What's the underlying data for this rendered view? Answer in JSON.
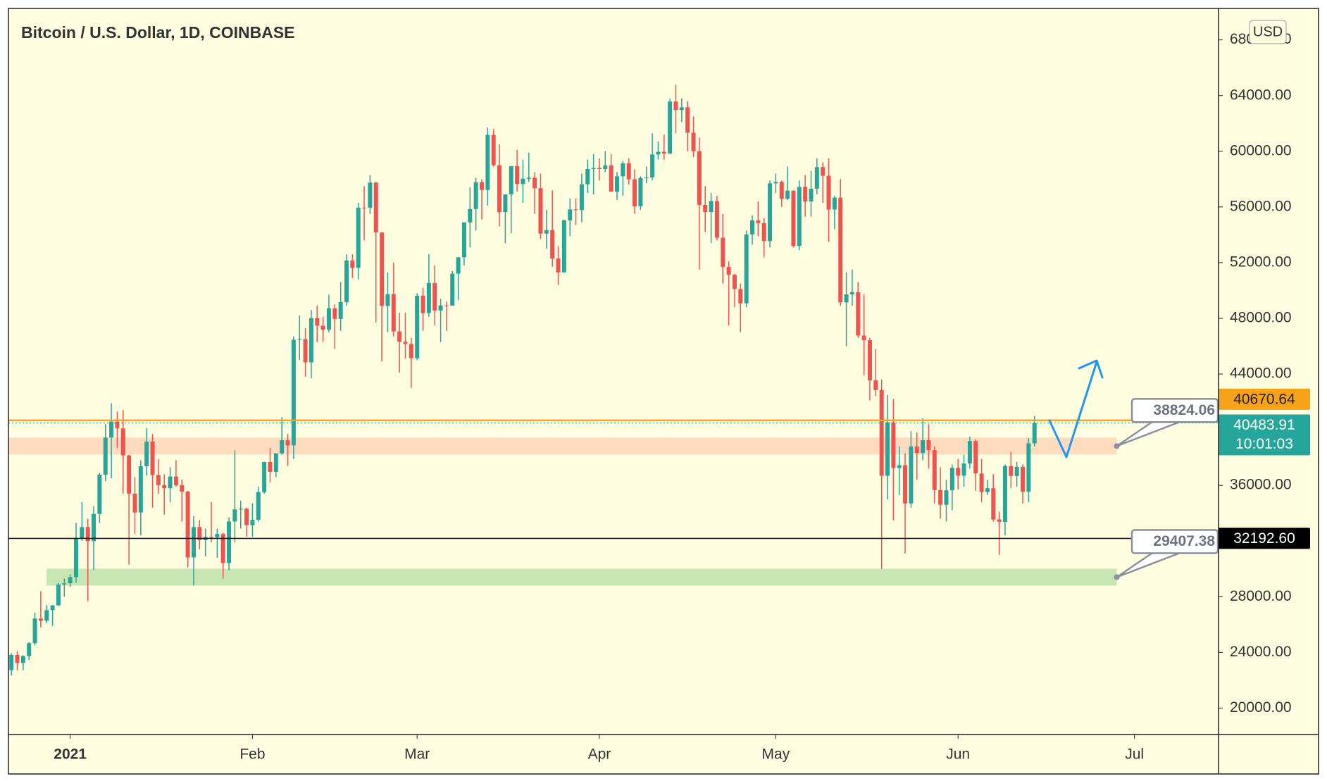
{
  "chart_data": {
    "type": "candlestick",
    "title": "Bitcoin / U.S. Dollar, 1D, COINBASE",
    "currency_button": "USD",
    "up_color": "#26a69a",
    "down_color": "#ef5350",
    "open": [
      22720,
      23824,
      23241,
      23736,
      24665,
      26437,
      26272,
      27038,
      27377,
      28876,
      28967,
      29412,
      32195,
      33001,
      31989,
      33949,
      36769,
      39432,
      40582,
      40088,
      38150,
      35404,
      34051,
      37371,
      39145,
      36742,
      36013,
      35799,
      36632,
      36013,
      35547,
      30826,
      33005,
      32067,
      32289,
      32261,
      32509,
      30425,
      33404,
      34275,
      34318,
      33137,
      33522,
      35510,
      37677,
      36975,
      38302,
      39240,
      38875,
      46453,
      46508,
      44838,
      48013,
      47470,
      47186,
      48720,
      47958,
      49168,
      52155,
      51622,
      55951,
      55950,
      57750,
      54161,
      48891,
      49727,
      47057,
      46320,
      46156,
      45135,
      49618,
      48377,
      50539,
      48562,
      48928,
      48912,
      51207,
      52386,
      54887,
      55851,
      57774,
      57221,
      61180,
      59001,
      55630,
      56900,
      58925,
      57645,
      58031,
      58102,
      57351,
      54083,
      54341,
      52297,
      51301,
      55032,
      55820,
      55777,
      57628,
      58730,
      58800,
      58726,
      58981,
      57095,
      58202,
      59130,
      57992,
      56048,
      58080,
      58125,
      59774,
      59964,
      59835,
      63576,
      62959,
      63159,
      61335,
      60006,
      56150,
      55633,
      56427,
      53787,
      51690,
      51125,
      50110,
      49075,
      54030,
      55036,
      54838,
      53555,
      57694,
      57800,
      56578,
      57169,
      53200,
      57441,
      56393,
      57314,
      58862,
      58240,
      55816,
      56670,
      49150,
      49716,
      49880,
      46760,
      46431,
      43538,
      42849,
      36690,
      40526,
      37252,
      37449,
      34700,
      38796,
      38325,
      39241,
      38529,
      35663,
      34605,
      35641,
      37254,
      36694,
      37568,
      39187,
      36851,
      35520,
      35796,
      33552,
      33380,
      37388,
      36675,
      37331,
      35546,
      39020
    ],
    "high": [
      23950,
      24100,
      23800,
      24750,
      26850,
      28400,
      27400,
      27400,
      28990,
      29300,
      29600,
      33300,
      34800,
      33600,
      34500,
      36900,
      40400,
      41900,
      41300,
      41400,
      38200,
      36600,
      37800,
      40100,
      39700,
      37900,
      36800,
      37300,
      37800,
      36400,
      35600,
      33800,
      33500,
      32900,
      34800,
      32900,
      32600,
      33700,
      38500,
      34900,
      34400,
      34700,
      35900,
      37700,
      38700,
      38300,
      40900,
      39700,
      46700,
      48200,
      47300,
      48600,
      48900,
      48100,
      49700,
      49000,
      50600,
      52600,
      52600,
      56300,
      57500,
      58300,
      57800,
      54200,
      51300,
      52000,
      48400,
      48400,
      46600,
      49800,
      50200,
      52600,
      51800,
      49400,
      49200,
      51400,
      52400,
      54900,
      57400,
      58100,
      58000,
      61700,
      61600,
      60500,
      56900,
      58900,
      60100,
      59400,
      59900,
      58500,
      58400,
      55800,
      57200,
      53200,
      55100,
      56600,
      56600,
      58400,
      59400,
      59800,
      59500,
      60000,
      59800,
      58500,
      59300,
      59500,
      58700,
      58200,
      58900,
      61300,
      60700,
      61200,
      63800,
      64800,
      63800,
      63600,
      62500,
      61000,
      57500,
      57000,
      56800,
      55500,
      52100,
      51200,
      50500,
      54300,
      55400,
      56400,
      55200,
      57900,
      58400,
      57900,
      58900,
      57200,
      57900,
      58300,
      58600,
      59500,
      59200,
      59500,
      56800,
      58000,
      51300,
      51500,
      50600,
      49700,
      46600,
      45800,
      43600,
      42500,
      42200,
      38800,
      38300,
      39900,
      39800,
      40800,
      40400,
      38800,
      37300,
      36400,
      37500,
      37900,
      38200,
      39500,
      39300,
      37900,
      36400,
      36800,
      34100,
      37500,
      38400,
      37700,
      37500,
      39400,
      40980
    ],
    "low": [
      22350,
      22700,
      22700,
      23450,
      24500,
      25800,
      26100,
      25900,
      27350,
      28000,
      28700,
      29000,
      32000,
      27700,
      29900,
      33300,
      36300,
      36500,
      38700,
      35400,
      30300,
      32500,
      32400,
      36700,
      34400,
      35400,
      33900,
      34800,
      35900,
      33400,
      30100,
      28800,
      31400,
      30900,
      31900,
      30800,
      29300,
      29900,
      31900,
      32900,
      32300,
      32300,
      33400,
      35400,
      36200,
      36600,
      38200,
      37400,
      37900,
      45000,
      43800,
      43700,
      46300,
      46300,
      47000,
      45800,
      47100,
      48900,
      50900,
      50800,
      53600,
      55500,
      47700,
      44900,
      47000,
      46700,
      44100,
      45100,
      43000,
      45000,
      47100,
      48100,
      47500,
      46300,
      47100,
      48900,
      49300,
      51800,
      53100,
      54300,
      55100,
      56100,
      58900,
      54600,
      53400,
      54100,
      57100,
      56300,
      57800,
      55500,
      53700,
      53000,
      51700,
      50400,
      51300,
      53900,
      54700,
      54900,
      57000,
      56900,
      57900,
      58500,
      57100,
      56500,
      56800,
      57600,
      55500,
      55800,
      57700,
      57900,
      59400,
      59400,
      59800,
      61300,
      62100,
      60000,
      59600,
      51500,
      54200,
      53400,
      53600,
      50500,
      47500,
      48800,
      47000,
      48800,
      53300,
      53900,
      52400,
      53100,
      57000,
      56000,
      56500,
      53100,
      52900,
      55300,
      55300,
      56900,
      56300,
      53500,
      54400,
      48900,
      46000,
      48900,
      46600,
      43900,
      42100,
      42400,
      30000,
      35000,
      33500,
      35300,
      31100,
      34400,
      36400,
      37800,
      37200,
      34700,
      33600,
      33400,
      34200,
      35700,
      35900,
      37200,
      35600,
      34800,
      35300,
      33400,
      31000,
      32400,
      35800,
      35900,
      34700,
      34800,
      38800
    ],
    "close": [
      23824,
      23241,
      23736,
      24665,
      26437,
      26272,
      27038,
      27377,
      28876,
      28967,
      29412,
      32195,
      33001,
      31989,
      33949,
      36769,
      39432,
      40582,
      40088,
      38150,
      35404,
      34051,
      37371,
      39145,
      36742,
      36013,
      35799,
      36632,
      36013,
      35547,
      30826,
      33005,
      32067,
      32289,
      32261,
      32509,
      30425,
      33404,
      34275,
      34318,
      33137,
      33522,
      35510,
      37677,
      36975,
      38302,
      39240,
      38875,
      46453,
      46508,
      44838,
      48013,
      47470,
      47186,
      48720,
      47958,
      49168,
      52155,
      51622,
      55951,
      55950,
      57750,
      54161,
      48891,
      49727,
      47057,
      46320,
      46156,
      45135,
      49618,
      48377,
      50539,
      48562,
      48928,
      48912,
      51207,
      52386,
      54887,
      55851,
      57774,
      57221,
      61180,
      59001,
      55630,
      56900,
      58925,
      57645,
      58031,
      58102,
      57351,
      54083,
      54341,
      52297,
      51301,
      55032,
      55820,
      55777,
      57628,
      58730,
      58800,
      58726,
      58981,
      57095,
      58202,
      59130,
      57992,
      56048,
      58080,
      58125,
      59774,
      59964,
      59835,
      63576,
      62959,
      63159,
      61335,
      60006,
      56150,
      55633,
      56427,
      53787,
      51690,
      51125,
      50110,
      49075,
      54030,
      55036,
      54838,
      53555,
      57694,
      57800,
      56578,
      57169,
      53200,
      57441,
      56393,
      57314,
      58862,
      58240,
      55816,
      56670,
      49150,
      49716,
      49880,
      46760,
      46431,
      43538,
      42849,
      36690,
      40526,
      37252,
      37449,
      34700,
      38796,
      38325,
      39241,
      38529,
      35663,
      34605,
      35641,
      37254,
      36694,
      37568,
      39187,
      36851,
      35520,
      35796,
      33552,
      33380,
      37388,
      36675,
      37331,
      35546,
      39020,
      40483.91
    ],
    "countdown": "10:01:03",
    "xlim": [
      -0.5,
      205.3
    ],
    "xticks": [
      {
        "value": 10,
        "label": "2021"
      },
      {
        "value": 41,
        "label": "Feb"
      },
      {
        "value": 69,
        "label": "Mar"
      },
      {
        "value": 100,
        "label": "Apr"
      },
      {
        "value": 130,
        "label": "May"
      },
      {
        "value": 161,
        "label": "Jun"
      },
      {
        "value": 191,
        "label": "Jul"
      }
    ],
    "ylim": [
      18100,
      70260
    ],
    "yticks": [
      {
        "value": 20000,
        "label": "20000.00"
      },
      {
        "value": 24000,
        "label": "24000.00"
      },
      {
        "value": 28000,
        "label": "28000.00"
      },
      {
        "value": 32000,
        "label": "32000.00"
      },
      {
        "value": 36000,
        "label": "36000.00"
      },
      {
        "value": 40000,
        "label": "40000.00"
      },
      {
        "value": 44000,
        "label": "44000.00"
      },
      {
        "value": 48000,
        "label": "48000.00"
      },
      {
        "value": 52000,
        "label": "52000.00"
      },
      {
        "value": 56000,
        "label": "56000.00"
      },
      {
        "value": 60000,
        "label": "60000.00"
      },
      {
        "value": 64000,
        "label": "64000.00"
      },
      {
        "value": 68000,
        "label": "68000.00"
      }
    ],
    "price_lines": [
      {
        "value": 40670.64,
        "color": "#f7a21b"
      },
      {
        "value": 32192.6,
        "label": "32192.60",
        "color": "#000000"
      }
    ],
    "zones": [
      {
        "value": 38824.06,
        "color": "#ffdcc0",
        "start": -0.5,
        "end": 188
      },
      {
        "value": 29407.38,
        "color": "#c8e6b4",
        "start": 6,
        "end": 188
      }
    ]
  }
}
